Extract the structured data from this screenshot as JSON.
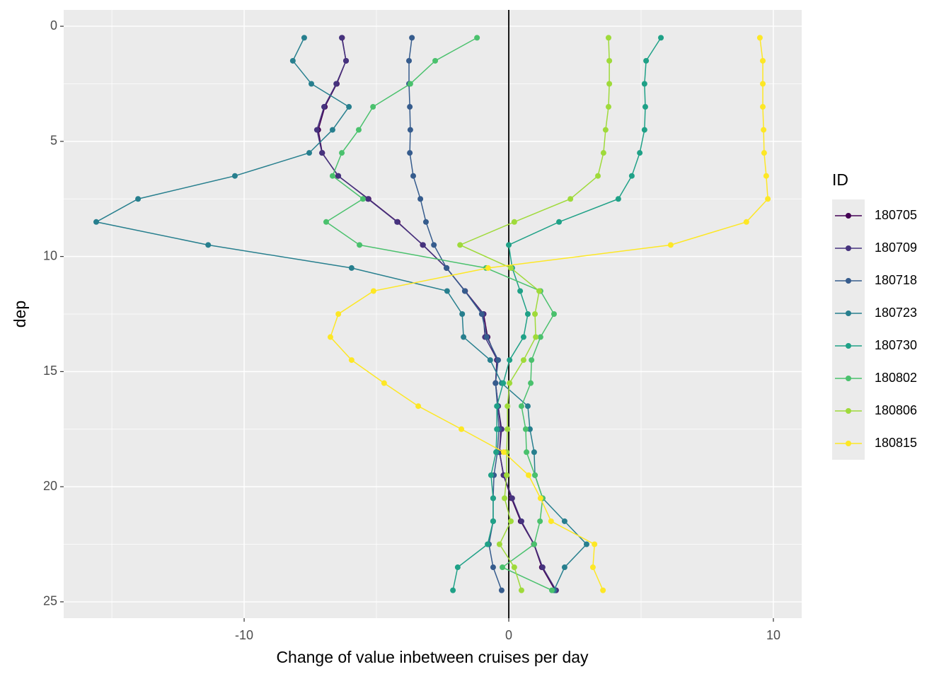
{
  "chart_data": {
    "type": "line",
    "x_label": "Change of value inbetween cruises per day",
    "y_label": "dep",
    "legend_title": "ID",
    "legend": "right",
    "grid": true,
    "vline": 0,
    "xlim": [
      -16.82,
      11.07
    ],
    "xticks": [
      -10,
      0,
      10
    ],
    "ylim": [
      25.71,
      -0.71
    ],
    "yticks": [
      0,
      5,
      10,
      15,
      20,
      25
    ],
    "series": [
      {
        "name": "180705",
        "color": "#440154",
        "x": [
          -6.3,
          -6.15,
          -6.5,
          -6.95,
          -7.2,
          -7.05,
          -6.45,
          -5.3,
          -4.2,
          -3.25,
          -2.35,
          -1.65,
          -0.95,
          -0.8,
          -0.45,
          -0.5,
          -0.4,
          -0.3,
          -0.35,
          -0.2,
          0.1,
          0.45,
          0.95,
          1.25,
          1.75
        ],
        "y": [
          0.5,
          1.5,
          2.5,
          3.5,
          4.5,
          5.5,
          6.5,
          7.5,
          8.5,
          9.5,
          10.5,
          11.5,
          12.5,
          13.5,
          14.5,
          15.5,
          16.5,
          17.5,
          18.5,
          19.5,
          20.5,
          21.5,
          22.5,
          23.5,
          24.5
        ]
      },
      {
        "name": "180709",
        "color": "#46337E",
        "x": [
          -6.31,
          -6.15,
          -6.52,
          -6.98,
          -7.25,
          -7.06,
          -6.44,
          -5.32,
          -4.22,
          -3.24,
          -2.35,
          -1.66,
          -0.96,
          -0.9,
          -0.43,
          -0.5,
          -0.4,
          -0.27,
          -0.35,
          -0.19,
          0.13,
          0.48,
          0.96,
          1.28,
          1.79
        ],
        "y": [
          0.5,
          1.5,
          2.5,
          3.5,
          4.5,
          5.5,
          6.5,
          7.5,
          8.5,
          9.5,
          10.5,
          11.5,
          12.5,
          13.5,
          14.5,
          15.5,
          16.5,
          17.5,
          18.5,
          19.5,
          20.5,
          21.5,
          22.5,
          23.5,
          24.5
        ]
      },
      {
        "name": "180718",
        "color": "#365C8D",
        "x": [
          -3.66,
          -3.77,
          -3.77,
          -3.74,
          -3.72,
          -3.74,
          -3.61,
          -3.34,
          -3.13,
          -2.83,
          -2.35,
          -1.66,
          -1.02,
          -0.83,
          -0.4,
          -0.5,
          -0.43,
          -0.37,
          -0.43,
          -0.56,
          -0.59,
          -0.59,
          -0.75,
          -0.59,
          -0.27
        ],
        "y": [
          0.5,
          1.5,
          2.5,
          3.5,
          4.5,
          5.5,
          6.5,
          7.5,
          8.5,
          9.5,
          10.5,
          11.5,
          12.5,
          13.5,
          14.5,
          15.5,
          16.5,
          17.5,
          18.5,
          19.5,
          20.5,
          21.5,
          22.5,
          23.5,
          24.5
        ]
      },
      {
        "name": "180723",
        "color": "#277F8E",
        "x": [
          -7.73,
          -8.16,
          -7.46,
          -6.04,
          -6.66,
          -7.54,
          -10.35,
          -14.01,
          -15.59,
          -11.36,
          -5.94,
          -2.33,
          -1.76,
          -1.71,
          -0.7,
          -0.27,
          0.72,
          0.8,
          0.96,
          0.99,
          1.28,
          2.11,
          2.94,
          2.11,
          1.71
        ],
        "y": [
          0.5,
          1.5,
          2.5,
          3.5,
          4.5,
          5.5,
          6.5,
          7.5,
          8.5,
          9.5,
          10.5,
          11.5,
          12.5,
          13.5,
          14.5,
          15.5,
          16.5,
          17.5,
          18.5,
          19.5,
          20.5,
          21.5,
          22.5,
          23.5,
          24.5
        ]
      },
      {
        "name": "180730",
        "color": "#1FA187",
        "x": [
          5.75,
          5.19,
          5.13,
          5.16,
          5.13,
          4.95,
          4.65,
          4.14,
          1.9,
          0.0,
          0.13,
          0.43,
          0.72,
          0.56,
          0.03,
          -0.21,
          -0.45,
          -0.45,
          -0.48,
          -0.67,
          -0.59,
          -0.59,
          -0.8,
          -1.93,
          -2.11
        ],
        "y": [
          0.5,
          1.5,
          2.5,
          3.5,
          4.5,
          5.5,
          6.5,
          7.5,
          8.5,
          9.5,
          10.5,
          11.5,
          12.5,
          13.5,
          14.5,
          15.5,
          16.5,
          17.5,
          18.5,
          19.5,
          20.5,
          21.5,
          22.5,
          23.5,
          24.5
        ]
      },
      {
        "name": "180802",
        "color": "#4AC16D",
        "x": [
          -1.2,
          -2.78,
          -3.72,
          -5.13,
          -5.67,
          -6.31,
          -6.66,
          -5.51,
          -6.9,
          -5.64,
          -0.86,
          1.2,
          1.71,
          1.2,
          0.86,
          0.83,
          0.48,
          0.64,
          0.67,
          0.99,
          1.28,
          1.18,
          0.96,
          -0.24,
          1.63
        ],
        "y": [
          0.5,
          1.5,
          2.5,
          3.5,
          4.5,
          5.5,
          6.5,
          7.5,
          8.5,
          9.5,
          10.5,
          11.5,
          12.5,
          13.5,
          14.5,
          15.5,
          16.5,
          17.5,
          18.5,
          19.5,
          20.5,
          21.5,
          22.5,
          23.5,
          24.5
        ]
      },
      {
        "name": "180806",
        "color": "#9FDA3A",
        "x": [
          3.77,
          3.8,
          3.8,
          3.77,
          3.66,
          3.58,
          3.37,
          2.33,
          0.21,
          -1.84,
          0.08,
          1.15,
          0.99,
          1.02,
          0.56,
          0.03,
          -0.05,
          -0.05,
          -0.08,
          -0.08,
          -0.16,
          0.08,
          -0.35,
          0.21,
          0.48
        ],
        "y": [
          0.5,
          1.5,
          2.5,
          3.5,
          4.5,
          5.5,
          6.5,
          7.5,
          8.5,
          9.5,
          10.5,
          11.5,
          12.5,
          13.5,
          14.5,
          15.5,
          16.5,
          17.5,
          18.5,
          19.5,
          20.5,
          21.5,
          22.5,
          23.5,
          24.5
        ]
      },
      {
        "name": "180815",
        "color": "#FDE725",
        "x": [
          9.49,
          9.6,
          9.6,
          9.6,
          9.63,
          9.65,
          9.73,
          9.79,
          8.98,
          6.12,
          -0.78,
          -5.11,
          -6.44,
          -6.74,
          -5.94,
          -4.71,
          -3.42,
          -1.79,
          -0.19,
          0.75,
          1.2,
          1.6,
          3.24,
          3.18,
          3.56
        ],
        "y": [
          0.5,
          1.5,
          2.5,
          3.5,
          4.5,
          5.5,
          6.5,
          7.5,
          8.5,
          9.5,
          10.5,
          11.5,
          12.5,
          13.5,
          14.5,
          15.5,
          16.5,
          17.5,
          18.5,
          19.5,
          20.5,
          21.5,
          22.5,
          23.5,
          24.5
        ]
      }
    ]
  }
}
